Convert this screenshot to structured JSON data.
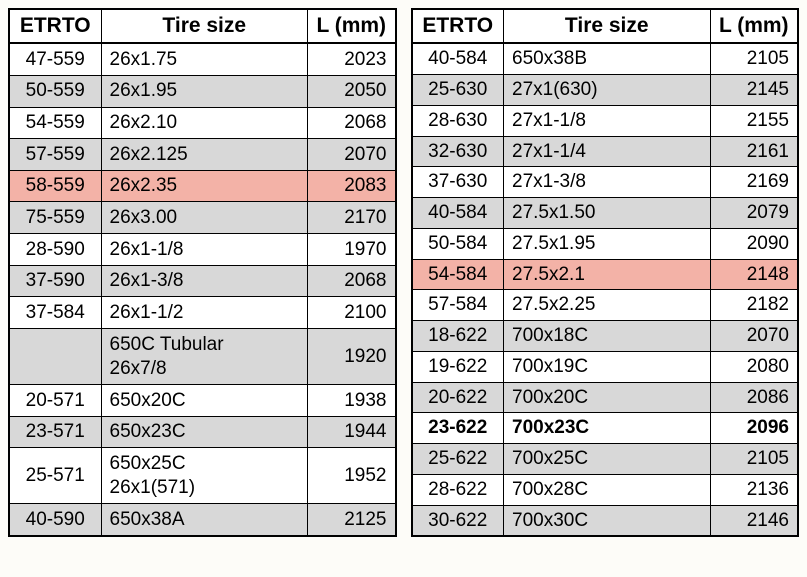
{
  "headers": {
    "etrto": "ETRTO",
    "size": "Tire size",
    "len": "L (mm)"
  },
  "left": [
    {
      "etrto": "47-559",
      "size": "26x1.75",
      "len": "2023",
      "shade": "white"
    },
    {
      "etrto": "50-559",
      "size": "26x1.95",
      "len": "2050",
      "shade": "grey"
    },
    {
      "etrto": "54-559",
      "size": "26x2.10",
      "len": "2068",
      "shade": "white"
    },
    {
      "etrto": "57-559",
      "size": "26x2.125",
      "len": "2070",
      "shade": "grey"
    },
    {
      "etrto": "58-559",
      "size": "26x2.35",
      "len": "2083",
      "shade": "hl"
    },
    {
      "etrto": "75-559",
      "size": "26x3.00",
      "len": "2170",
      "shade": "grey"
    },
    {
      "etrto": "28-590",
      "size": "26x1-1/8",
      "len": "1970",
      "shade": "white"
    },
    {
      "etrto": "37-590",
      "size": "26x1-3/8",
      "len": "2068",
      "shade": "grey"
    },
    {
      "etrto": "37-584",
      "size": "26x1-1/2",
      "len": "2100",
      "shade": "white"
    },
    {
      "etrto": "",
      "size": "650C Tubular\n26x7/8",
      "len": "1920",
      "shade": "grey",
      "multi": true
    },
    {
      "etrto": "20-571",
      "size": "650x20C",
      "len": "1938",
      "shade": "white"
    },
    {
      "etrto": "23-571",
      "size": "650x23C",
      "len": "1944",
      "shade": "grey"
    },
    {
      "etrto": "25-571",
      "size": "650x25C\n26x1(571)",
      "len": "1952",
      "shade": "white",
      "multi": true
    },
    {
      "etrto": "40-590",
      "size": "650x38A",
      "len": "2125",
      "shade": "grey"
    }
  ],
  "right": [
    {
      "etrto": "40-584",
      "size": "650x38B",
      "len": "2105",
      "shade": "white"
    },
    {
      "etrto": "25-630",
      "size": "27x1(630)",
      "len": "2145",
      "shade": "grey"
    },
    {
      "etrto": "28-630",
      "size": "27x1-1/8",
      "len": "2155",
      "shade": "white"
    },
    {
      "etrto": "32-630",
      "size": "27x1-1/4",
      "len": "2161",
      "shade": "grey"
    },
    {
      "etrto": "37-630",
      "size": "27x1-3/8",
      "len": "2169",
      "shade": "white"
    },
    {
      "etrto": "40-584",
      "size": "27.5x1.50",
      "len": "2079",
      "shade": "grey"
    },
    {
      "etrto": "50-584",
      "size": "27.5x1.95",
      "len": "2090",
      "shade": "white"
    },
    {
      "etrto": "54-584",
      "size": "27.5x2.1",
      "len": "2148",
      "shade": "hl"
    },
    {
      "etrto": "57-584",
      "size": "27.5x2.25",
      "len": "2182",
      "shade": "white"
    },
    {
      "etrto": "18-622",
      "size": "700x18C",
      "len": "2070",
      "shade": "grey"
    },
    {
      "etrto": "19-622",
      "size": "700x19C",
      "len": "2080",
      "shade": "white"
    },
    {
      "etrto": "20-622",
      "size": "700x20C",
      "len": "2086",
      "shade": "grey"
    },
    {
      "etrto": "23-622",
      "size": "700x23C",
      "len": "2096",
      "shade": "white",
      "bold": true
    },
    {
      "etrto": "25-622",
      "size": "700x25C",
      "len": "2105",
      "shade": "grey"
    },
    {
      "etrto": "28-622",
      "size": "700x28C",
      "len": "2136",
      "shade": "white"
    },
    {
      "etrto": "30-622",
      "size": "700x30C",
      "len": "2146",
      "shade": "grey"
    }
  ]
}
